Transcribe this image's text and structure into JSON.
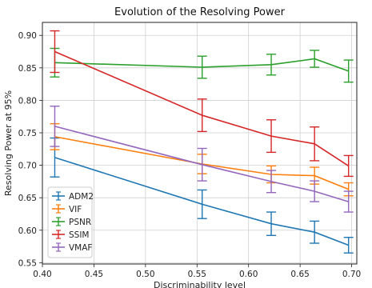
{
  "chart_data": {
    "type": "line",
    "title": "Evolution of the Resolving Power",
    "xlabel": "Discriminability level",
    "ylabel": "Resolving Power at 95%",
    "xlim": [
      0.4,
      0.705
    ],
    "ylim": [
      0.548,
      0.92
    ],
    "xticks": [
      "0.40",
      "0.45",
      "0.50",
      "0.55",
      "0.60",
      "0.65",
      "0.70"
    ],
    "yticks": [
      "0.55",
      "0.60",
      "0.65",
      "0.70",
      "0.75",
      "0.80",
      "0.85",
      "0.90"
    ],
    "grid": true,
    "legend_position": "lower-left",
    "x": [
      0.412,
      0.555,
      0.622,
      0.664,
      0.697
    ],
    "series": [
      {
        "name": "ADM2",
        "color": "#1f77b4",
        "values": [
          0.712,
          0.64,
          0.61,
          0.597,
          0.577
        ],
        "errors": [
          0.03,
          0.022,
          0.018,
          0.017,
          0.012
        ]
      },
      {
        "name": "VIF",
        "color": "#ff7f0e",
        "values": [
          0.744,
          0.702,
          0.686,
          0.684,
          0.663
        ],
        "errors": [
          0.02,
          0.015,
          0.013,
          0.013,
          0.01
        ]
      },
      {
        "name": "PSNR",
        "color": "#2ca02c",
        "values": [
          0.858,
          0.851,
          0.855,
          0.864,
          0.845
        ],
        "errors": [
          0.022,
          0.017,
          0.016,
          0.013,
          0.017
        ]
      },
      {
        "name": "SSIM",
        "color": "#d62728",
        "values": [
          0.875,
          0.777,
          0.745,
          0.733,
          0.699
        ],
        "errors": [
          0.032,
          0.025,
          0.025,
          0.026,
          0.016
        ]
      },
      {
        "name": "VMAF",
        "color": "#9467bd",
        "values": [
          0.76,
          0.701,
          0.675,
          0.66,
          0.644
        ],
        "errors": [
          0.031,
          0.025,
          0.017,
          0.016,
          0.016
        ]
      }
    ]
  }
}
